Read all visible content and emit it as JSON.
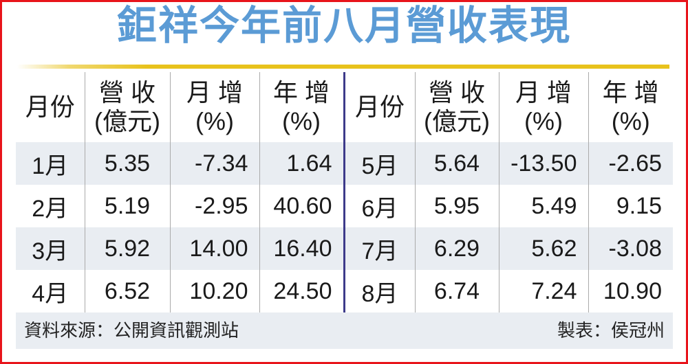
{
  "title": "鉅祥今年前八月營收表現",
  "colors": {
    "title": "#5b9bd5",
    "border": "#e8141b",
    "accent_line": "#e8c21c",
    "stripe": "#e9edf2",
    "center_divider": "#3d3a8a"
  },
  "headers": [
    {
      "l1": "月份",
      "l2": ""
    },
    {
      "l1": "營 收",
      "l2": "(億元)"
    },
    {
      "l1": "月 增",
      "l2": "(%)"
    },
    {
      "l1": "年 增",
      "l2": "(%)"
    }
  ],
  "left_rows": [
    {
      "month": "1月",
      "revenue": "5.35",
      "mom": "-7.34",
      "yoy": "1.64"
    },
    {
      "month": "2月",
      "revenue": "5.19",
      "mom": "-2.95",
      "yoy": "40.60"
    },
    {
      "month": "3月",
      "revenue": "5.92",
      "mom": "14.00",
      "yoy": "16.40"
    },
    {
      "month": "4月",
      "revenue": "6.52",
      "mom": "10.20",
      "yoy": "24.50"
    }
  ],
  "right_rows": [
    {
      "month": "5月",
      "revenue": "5.64",
      "mom": "-13.50",
      "yoy": "-2.65"
    },
    {
      "month": "6月",
      "revenue": "5.95",
      "mom": "5.49",
      "yoy": "9.15"
    },
    {
      "month": "7月",
      "revenue": "6.29",
      "mom": "5.62",
      "yoy": "-3.08"
    },
    {
      "month": "8月",
      "revenue": "6.74",
      "mom": "7.24",
      "yoy": "10.90"
    }
  ],
  "footer": {
    "source": "資料來源：公開資訊觀測站",
    "maker": "製表：侯冠州"
  }
}
